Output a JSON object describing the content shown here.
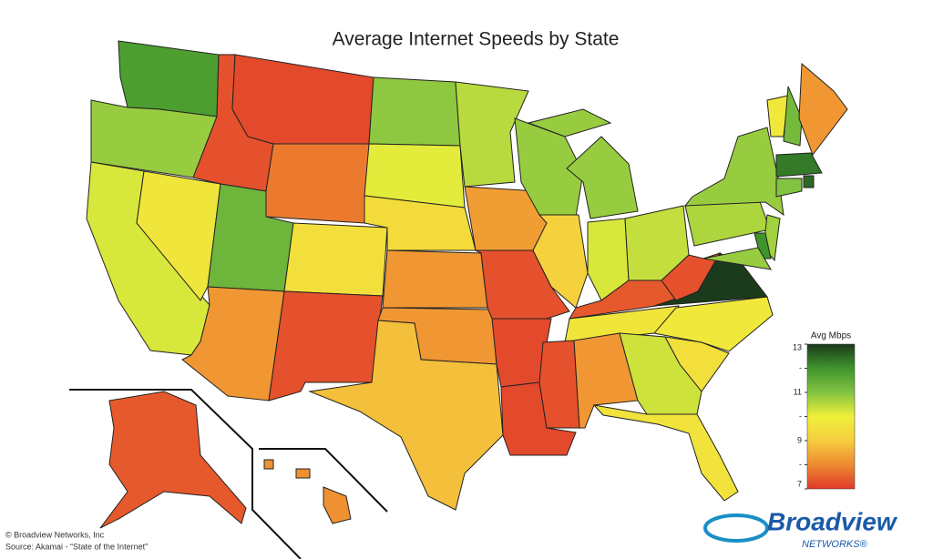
{
  "chart_data": {
    "type": "choropleth",
    "title": "Average Internet Speeds by State",
    "values": {
      "WA": 11.8,
      "OR": 10.8,
      "CA": 10.2,
      "NV": 9.7,
      "ID": 7.3,
      "MT": 7.2,
      "WY": 7.8,
      "UT": 11.3,
      "CO": 9.5,
      "AZ": 8.2,
      "NM": 7.3,
      "ND": 10.9,
      "SD": 10.1,
      "NE": 9.4,
      "KS": 8.2,
      "OK": 8.2,
      "TX": 8.8,
      "MN": 10.5,
      "IA": 8.3,
      "MO": 7.3,
      "AR": 7.2,
      "LA": 7.2,
      "WI": 10.8,
      "IL": 9.1,
      "MI": 10.8,
      "IN": 10.2,
      "OH": 10.4,
      "KY": 7.4,
      "TN": 9.7,
      "MS": 7.3,
      "AL": 8.2,
      "GA": 10.3,
      "FL": 9.6,
      "SC": 9.5,
      "NC": 9.8,
      "VA": 13,
      "WV": 7.3,
      "PA": 10.6,
      "NY": 10.8,
      "VT": 9.8,
      "NH": 11.2,
      "ME": 8.2,
      "MA": 12.3,
      "RI": 12.5,
      "CT": 11,
      "NJ": 10.7,
      "DE": 12,
      "MD": 10.8,
      "AK": 7.4,
      "HI": 8.1
    },
    "colorscale": {
      "title": "Avg Mbps",
      "clim": [
        7,
        13
      ],
      "ticks": [
        13,
        {
          "value": 12,
          "label": "-"
        },
        11,
        {
          "value": 10,
          "label": "-"
        },
        9,
        {
          "value": 8,
          "label": "-"
        },
        7
      ],
      "colors": [
        "#e0392a",
        "#ee8a30",
        "#f6cd3e",
        "#eef03a",
        "#82c341",
        "#3f952d",
        "#1c3a1c"
      ]
    }
  },
  "footer": {
    "copyright": "© Broadview Networks, Inc",
    "source": "Source: Akamai - “State of the Internet”"
  },
  "logo": {
    "name": "Broadview",
    "sub": "NETWORKS®"
  }
}
